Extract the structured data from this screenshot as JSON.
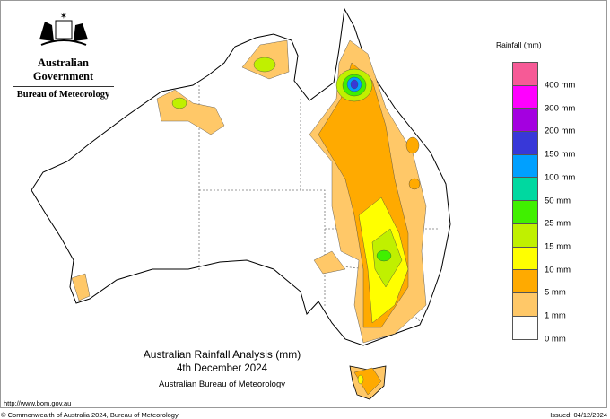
{
  "header": {
    "government": "Australian Government",
    "agency": "Bureau of Meteorology"
  },
  "legend": {
    "title": "Rainfall (mm)",
    "colors": [
      "#f65a96",
      "#ff00ff",
      "#a400e0",
      "#3838d8",
      "#00a0ff",
      "#00d8a0",
      "#40f000",
      "#c0f000",
      "#ffff00",
      "#ffaa00",
      "#ffc868",
      "#ffffff"
    ],
    "labels": [
      "400 mm",
      "300 mm",
      "200 mm",
      "150 mm",
      "100 mm",
      "50 mm",
      "25 mm",
      "15 mm",
      "10 mm",
      "5 mm",
      "1 mm",
      "0 mm"
    ]
  },
  "map_title": {
    "line1": "Australian Rainfall Analysis (mm)",
    "line2": "4th December 2024",
    "line3": "Australian Bureau of Meteorology"
  },
  "footer": {
    "url": "http://www.bom.gov.au",
    "copyright": "© Commonwealth of Australia 2024, Bureau of Meteorology",
    "issued": "Issued: 04/12/2024"
  }
}
